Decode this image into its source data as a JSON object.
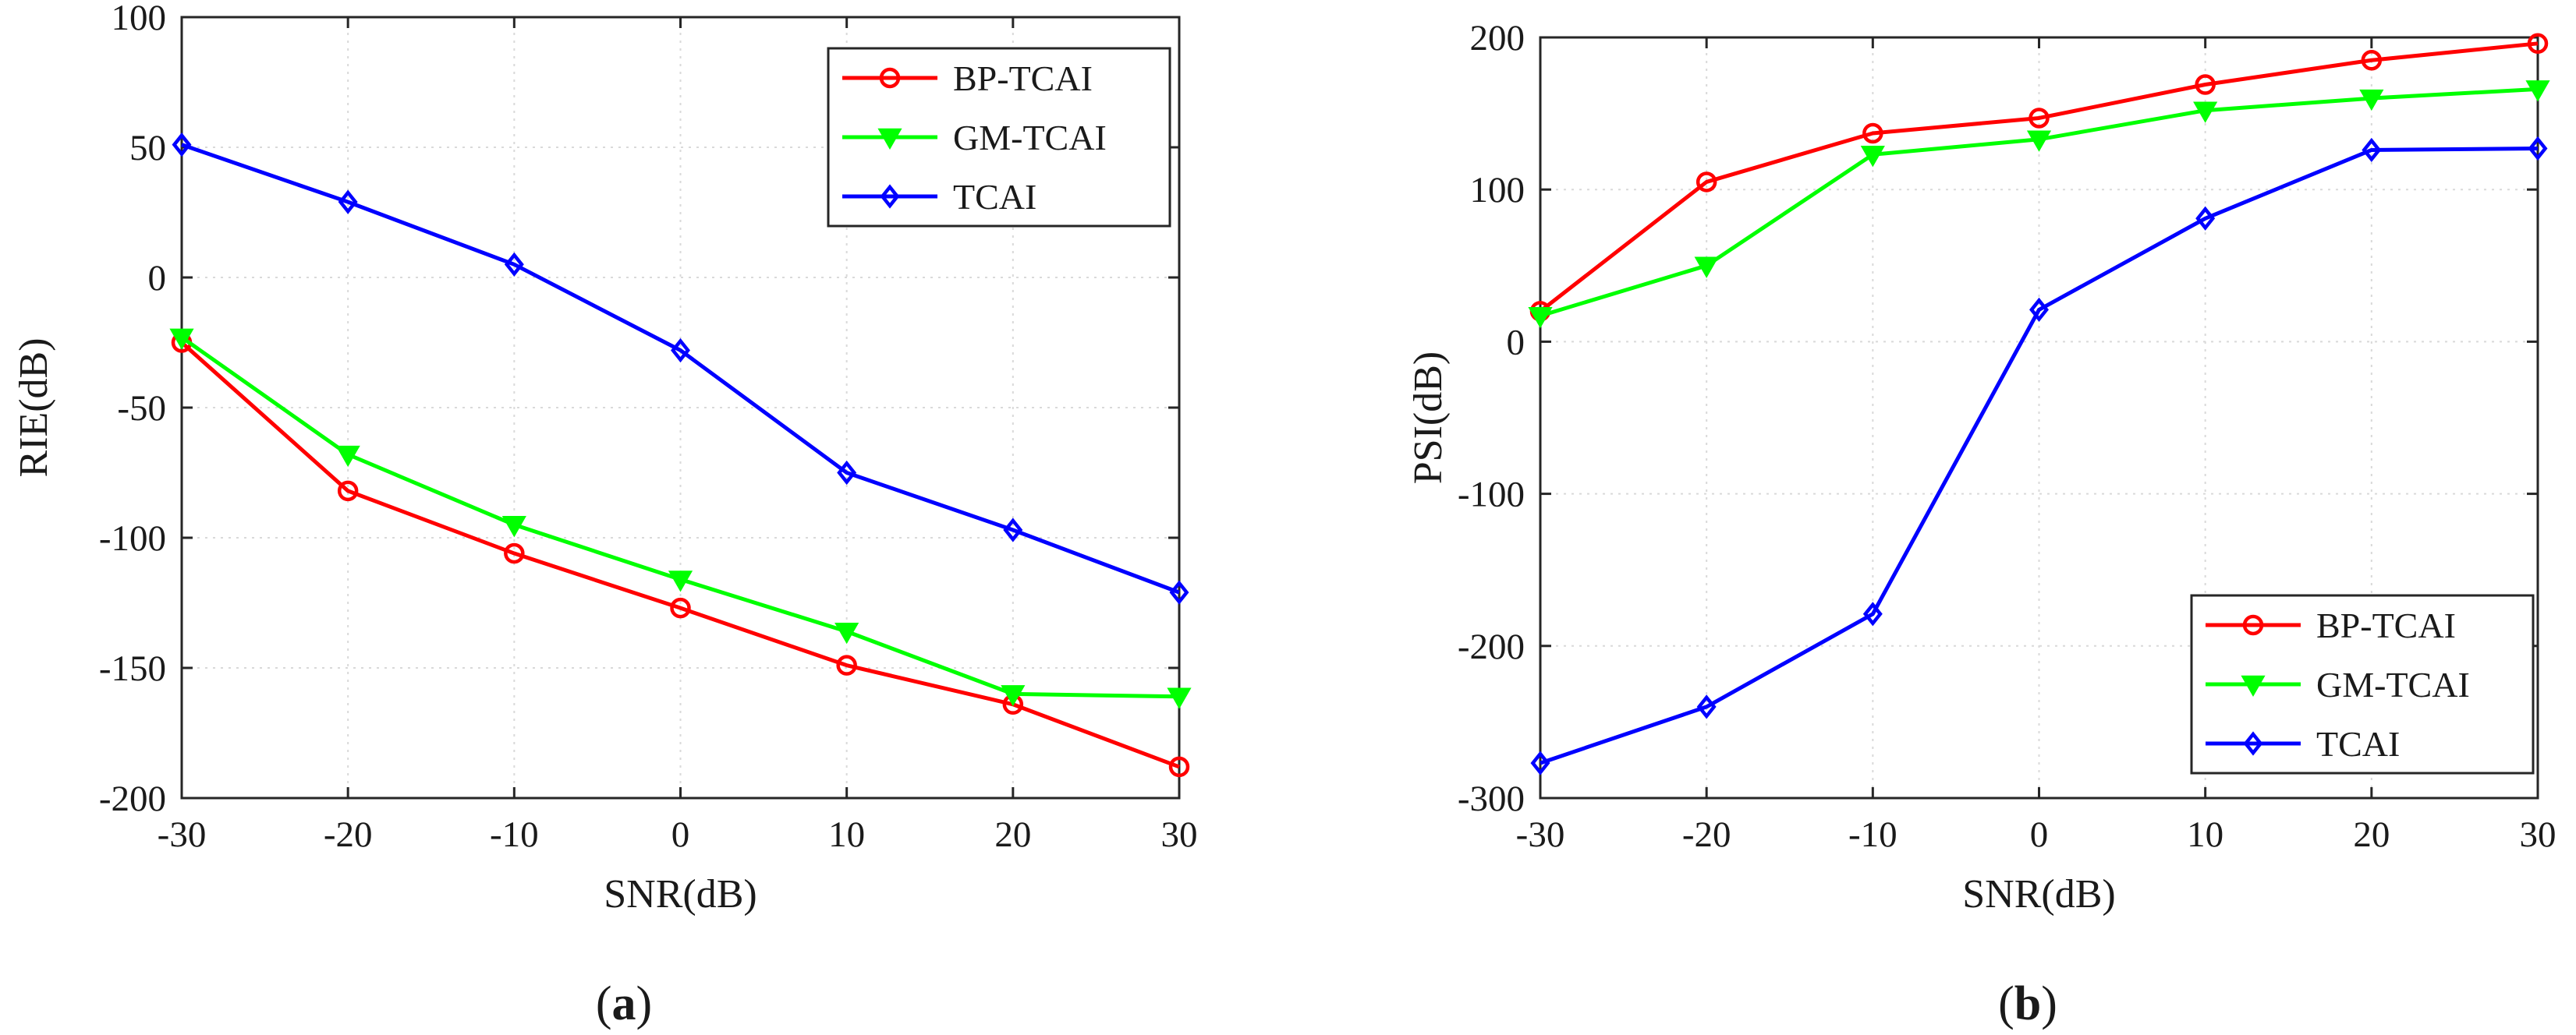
{
  "colors": {
    "BP-TCAI": "#ff0000",
    "GM-TCAI": "#00ff00",
    "TCAI": "#0000ff"
  },
  "chart_data": [
    {
      "type": "line",
      "panel": "a",
      "caption_open": "(",
      "caption_letter": "a",
      "caption_close": ")",
      "xlabel": "SNR(dB)",
      "ylabel": "RIE(dB)",
      "x": [
        -30,
        -20,
        -10,
        0,
        10,
        20,
        30
      ],
      "xlim": [
        -30,
        30
      ],
      "ylim": [
        -200,
        100
      ],
      "xticks": [
        -30,
        -20,
        -10,
        0,
        10,
        20,
        30
      ],
      "yticks": [
        -200,
        -150,
        -100,
        -50,
        0,
        50,
        100
      ],
      "grid": true,
      "legend_location": "top-right",
      "series": [
        {
          "name": "BP-TCAI",
          "marker": "circle",
          "values": [
            -25,
            -82,
            -106,
            -127,
            -149,
            -164,
            -188
          ]
        },
        {
          "name": "GM-TCAI",
          "marker": "triangle-down",
          "values": [
            -23,
            -68,
            -95,
            -116,
            -136,
            -160,
            -161
          ]
        },
        {
          "name": "TCAI",
          "marker": "diamond",
          "values": [
            51,
            29,
            5,
            -28,
            -75,
            -97,
            -121
          ]
        }
      ]
    },
    {
      "type": "line",
      "panel": "b",
      "caption_open": "(",
      "caption_letter": "b",
      "caption_close": ")",
      "xlabel": "SNR(dB)",
      "ylabel": "PSI(dB)",
      "x": [
        -30,
        -20,
        -10,
        0,
        10,
        20,
        30
      ],
      "xlim": [
        -30,
        30
      ],
      "ylim": [
        -300,
        200
      ],
      "xticks": [
        -30,
        -20,
        -10,
        0,
        10,
        20,
        30
      ],
      "yticks": [
        -300,
        -200,
        -100,
        0,
        100,
        200
      ],
      "grid": true,
      "legend_location": "bottom-right",
      "series": [
        {
          "name": "BP-TCAI",
          "marker": "circle",
          "values": [
            20,
            105,
            137,
            147,
            169,
            185,
            196
          ]
        },
        {
          "name": "GM-TCAI",
          "marker": "triangle-down",
          "values": [
            17,
            50,
            123,
            133,
            152,
            160,
            166
          ]
        },
        {
          "name": "TCAI",
          "marker": "diamond",
          "values": [
            -277,
            -240,
            -179,
            21,
            81,
            126,
            127
          ]
        }
      ]
    }
  ]
}
